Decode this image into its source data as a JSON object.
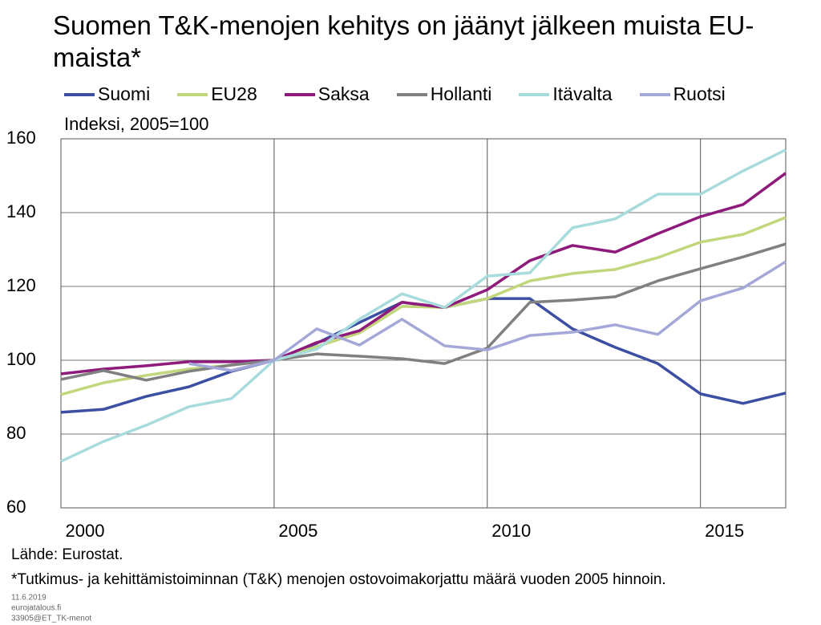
{
  "chart_data": {
    "type": "line",
    "title": "Suomen T&K-menojen kehitys on jäänyt jälkeen muista EU-maista*",
    "y_label": "Indeksi, 2005=100",
    "x": [
      2000,
      2001,
      2002,
      2003,
      2004,
      2005,
      2006,
      2007,
      2008,
      2009,
      2010,
      2011,
      2012,
      2013,
      2014,
      2015,
      2016,
      2017
    ],
    "series": [
      {
        "name": "Suomi",
        "color": "#3d4fa3",
        "values": [
          85.9,
          86.7,
          90.2,
          92.8,
          97,
          100,
          104.6,
          110.2,
          115.7,
          114.3,
          116.7,
          116.7,
          108.5,
          103.5,
          99.1,
          90.9,
          88.3,
          91.1
        ]
      },
      {
        "name": "EU28",
        "color": "#c2d77c",
        "values": [
          90.7,
          93.9,
          95.9,
          97.6,
          98.7,
          100,
          103.7,
          107.4,
          114.6,
          114.3,
          116.7,
          121.5,
          123.5,
          124.6,
          127.8,
          132,
          134.1,
          138.7
        ]
      },
      {
        "name": "Saksa",
        "color": "#8e1a7b",
        "values": [
          96.3,
          97.6,
          98.5,
          99.6,
          99.6,
          100,
          104.8,
          108,
          115.7,
          114.3,
          119.1,
          127,
          131.1,
          129.3,
          134.3,
          138.9,
          142.2,
          150.7
        ]
      },
      {
        "name": "Hollanti",
        "color": "#808080",
        "values": [
          94.8,
          97.2,
          94.6,
          97,
          98.7,
          100,
          101.7,
          101.1,
          100.4,
          99.1,
          103.3,
          115.7,
          116.3,
          117.2,
          121.5,
          124.8,
          128,
          131.5
        ]
      },
      {
        "name": "Itävalta",
        "color": "#a8dcdc",
        "values": [
          72.6,
          78,
          82.4,
          87.4,
          89.6,
          100,
          103,
          111.1,
          118,
          114.3,
          122.8,
          123.7,
          135.9,
          138.3,
          145,
          145,
          151.3,
          157
        ]
      },
      {
        "name": "Ruotsi",
        "color": "#a3a8d8",
        "values": [
          null,
          null,
          null,
          99.1,
          97.2,
          100,
          108.5,
          104.1,
          111.1,
          103.9,
          102.8,
          106.7,
          107.6,
          109.6,
          107,
          116.1,
          119.6,
          126.7
        ]
      }
    ],
    "xlim": [
      2000,
      2017
    ],
    "xticks": [
      2000,
      2005,
      2010,
      2015
    ],
    "ylim": [
      60,
      160
    ],
    "yticks": [
      60,
      80,
      100,
      120,
      140,
      160
    ],
    "grid": true,
    "source": "Lähde: Eurostat.",
    "note": "*Tutkimus- ja kehittämistoiminnan (T&K) menojen ostovoimakorjattu määrä vuoden 2005 hinnoin.",
    "footer": [
      "11.6.2019",
      "eurojatalous.fi",
      "33905@ET_TK-menot"
    ]
  }
}
